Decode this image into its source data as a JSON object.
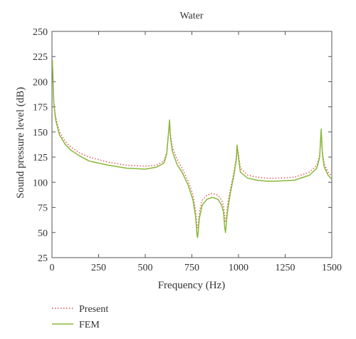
{
  "chart_data": {
    "type": "line",
    "title": "Water",
    "xlabel": "Frequency (Hz)",
    "ylabel": "Sound pressure level (dB)",
    "xlim": [
      0,
      1500
    ],
    "ylim": [
      25,
      250
    ],
    "xticks": [
      0,
      250,
      500,
      750,
      1000,
      1250,
      1500
    ],
    "yticks": [
      25,
      50,
      75,
      100,
      125,
      150,
      175,
      200,
      225,
      250
    ],
    "grid": false,
    "legend_position": "bottom-left",
    "series": [
      {
        "name": "Present",
        "color": "#e05050",
        "style": "dotted",
        "x": [
          2,
          10,
          20,
          40,
          70,
          100,
          150,
          200,
          300,
          400,
          500,
          560,
          600,
          615,
          625,
          630,
          635,
          645,
          670,
          700,
          730,
          755,
          770,
          778,
          783,
          790,
          805,
          830,
          860,
          890,
          910,
          920,
          928,
          932,
          940,
          955,
          975,
          988,
          992,
          1000,
          1010,
          1050,
          1100,
          1150,
          1200,
          1300,
          1380,
          1420,
          1435,
          1442,
          1450,
          1460,
          1480,
          1500
        ],
        "y": [
          220,
          180,
          165,
          150,
          141,
          135,
          129,
          125,
          120,
          117,
          116,
          117,
          121,
          130,
          150,
          158,
          148,
          135,
          123,
          113,
          101,
          88,
          72,
          55,
          55,
          70,
          82,
          87,
          89,
          87,
          82,
          76,
          62,
          60,
          76,
          92,
          110,
          125,
          136,
          128,
          114,
          107,
          105,
          104,
          104,
          105,
          110,
          117,
          127,
          150,
          130,
          118,
          110,
          106
        ]
      },
      {
        "name": "FEM",
        "color": "#8ab83a",
        "style": "solid",
        "x": [
          2,
          10,
          20,
          40,
          70,
          100,
          150,
          200,
          300,
          400,
          500,
          560,
          600,
          615,
          625,
          630,
          635,
          645,
          670,
          700,
          730,
          755,
          770,
          778,
          781,
          790,
          805,
          830,
          860,
          890,
          910,
          920,
          926,
          930,
          940,
          955,
          975,
          988,
          992,
          1000,
          1010,
          1050,
          1100,
          1150,
          1200,
          1300,
          1380,
          1420,
          1435,
          1443,
          1450,
          1460,
          1480,
          1500
        ],
        "y": [
          222,
          178,
          162,
          147,
          138,
          132,
          126,
          121,
          117,
          114,
          113,
          115,
          119,
          128,
          150,
          162,
          145,
          131,
          118,
          109,
          97,
          83,
          66,
          47,
          45,
          64,
          77,
          83,
          85,
          83,
          77,
          70,
          55,
          50,
          70,
          88,
          107,
          122,
          137,
          124,
          110,
          104,
          102,
          101,
          101,
          102,
          107,
          114,
          125,
          153,
          127,
          115,
          107,
          103
        ]
      }
    ]
  }
}
